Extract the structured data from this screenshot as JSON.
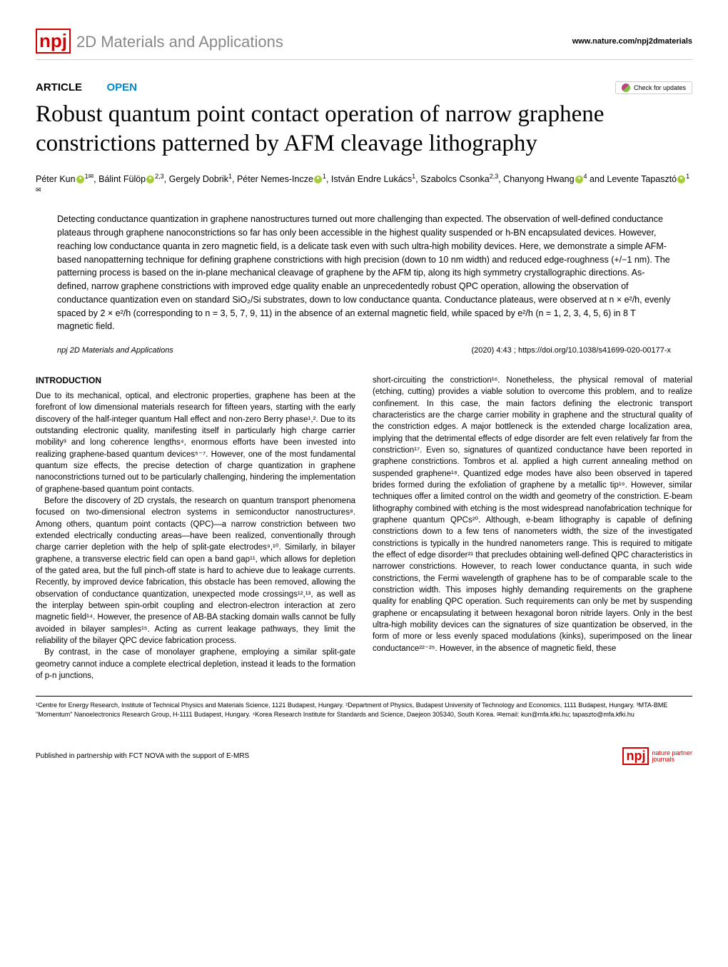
{
  "header": {
    "logo_text": "npj",
    "journal_name": "2D Materials and Applications",
    "website": "www.nature.com/npj2dmaterials"
  },
  "article_meta": {
    "type": "ARTICLE",
    "open_label": "OPEN",
    "check_updates": "Check for updates"
  },
  "title": "Robust quantum point contact operation of narrow graphene constrictions patterned by AFM cleavage lithography",
  "authors": {
    "a1_name": "Péter Kun",
    "a1_aff": "1",
    "a2_name": "Bálint Fülöp",
    "a2_aff": "2,3",
    "a3_name": "Gergely Dobrik",
    "a3_aff": "1",
    "a4_name": "Péter Nemes-Incze",
    "a4_aff": "1",
    "a5_name": "István Endre Lukács",
    "a5_aff": "1",
    "a6_name": "Szabolcs Csonka",
    "a6_aff": "2,3",
    "a7_name": "Chanyong Hwang",
    "a7_aff": "4",
    "a8_name": "Levente Tapasztó",
    "a8_aff": "1"
  },
  "abstract": "Detecting conductance quantization in graphene nanostructures turned out more challenging than expected. The observation of well-defined conductance plateaus through graphene nanoconstrictions so far has only been accessible in the highest quality suspended or h-BN encapsulated devices. However, reaching low conductance quanta in zero magnetic field, is a delicate task even with such ultra-high mobility devices. Here, we demonstrate a simple AFM-based nanopatterning technique for defining graphene constrictions with high precision (down to 10 nm width) and reduced edge-roughness (+/−1 nm). The patterning process is based on the in-plane mechanical cleavage of graphene by the AFM tip, along its high symmetry crystallographic directions. As-defined, narrow graphene constrictions with improved edge quality enable an unprecedentedly robust QPC operation, allowing the observation of conductance quantization even on standard SiO₂/Si substrates, down to low conductance quanta. Conductance plateaus, were observed at n × e²/h, evenly spaced by 2 × e²/h (corresponding to n = 3, 5, 7, 9, 11) in the absence of an external magnetic field, while spaced by e²/h (n = 1, 2, 3, 4, 5, 6) in 8 T magnetic field.",
  "citation": {
    "journal": "npj 2D Materials and Applications",
    "info": "(2020) 4:43 ; https://doi.org/10.1038/s41699-020-00177-x"
  },
  "body": {
    "intro_heading": "INTRODUCTION",
    "col1_p1": "Due to its mechanical, optical, and electronic properties, graphene has been at the forefront of low dimensional materials research for fifteen years, starting with the early discovery of the half-integer quantum Hall effect and non-zero Berry phase¹,². Due to its outstanding electronic quality, manifesting itself in particularly high charge carrier mobility³ and long coherence lengths⁴, enormous efforts have been invested into realizing graphene-based quantum devices⁵⁻⁷. However, one of the most fundamental quantum size effects, the precise detection of charge quantization in graphene nanoconstrictions turned out to be particularly challenging, hindering the implementation of graphene-based quantum point contacts.",
    "col1_p2": "Before the discovery of 2D crystals, the research on quantum transport phenomena focused on two-dimensional electron systems in semiconductor nanostructures⁸. Among others, quantum point contacts (QPC)—a narrow constriction between two extended electrically conducting areas—have been realized, conventionally through charge carrier depletion with the help of split-gate electrodes⁹,¹⁰. Similarly, in bilayer graphene, a transverse electric field can open a band gap¹¹, which allows for depletion of the gated area, but the full pinch-off state is hard to achieve due to leakage currents. Recently, by improved device fabrication, this obstacle has been removed, allowing the observation of conductance quantization, unexpected mode crossings¹²,¹³, as well as the interplay between spin-orbit coupling and electron-electron interaction at zero magnetic field¹⁴. However, the presence of AB-BA stacking domain walls cannot be fully avoided in bilayer samples¹⁵. Acting as current leakage pathways, they limit the reliability of the bilayer QPC device fabrication process.",
    "col1_p3": "By contrast, in the case of monolayer graphene, employing a similar split-gate geometry cannot induce a complete electrical depletion, instead it leads to the formation of p-n junctions,",
    "col2_p1": "short-circuiting the constriction¹⁶. Nonetheless, the physical removal of material (etching, cutting) provides a viable solution to overcome this problem, and to realize confinement. In this case, the main factors defining the electronic transport characteristics are the charge carrier mobility in graphene and the structural quality of the constriction edges. A major bottleneck is the extended charge localization area, implying that the detrimental effects of edge disorder are felt even relatively far from the constriction¹⁷. Even so, signatures of quantized conductance have been reported in graphene constrictions. Tombros et al. applied a high current annealing method on suspended graphene¹⁸. Quantized edge modes have also been observed in tapered brides formed during the exfoliation of graphene by a metallic tip¹⁹. However, similar techniques offer a limited control on the width and geometry of the constriction. E-beam lithography combined with etching is the most widespread nanofabrication technique for graphene quantum QPCs²⁰. Although, e-beam lithography is capable of defining constrictions down to a few tens of nanometers width, the size of the investigated constrictions is typically in the hundred nanometers range. This is required to mitigate the effect of edge disorder²¹ that precludes obtaining well-defined QPC characteristics in narrower constrictions. However, to reach lower conductance quanta, in such wide constrictions, the Fermi wavelength of graphene has to be of comparable scale to the constriction width. This imposes highly demanding requirements on the graphene quality for enabling QPC operation. Such requirements can only be met by suspending graphene or encapsulating it between hexagonal boron nitride layers. Only in the best ultra-high mobility devices can the signatures of size quantization be observed, in the form of more or less evenly spaced modulations (kinks), superimposed on the linear conductance²²⁻²⁵. However, in the absence of magnetic field, these"
  },
  "affiliations": "¹Centre for Energy Research, Institute of Technical Physics and Materials Science, 1121 Budapest, Hungary. ²Department of Physics, Budapest University of Technology and Economics, 1111 Budapest, Hungary. ³MTA-BME \"Momentum\" Nanoelectronics Research Group, H-1111 Budapest, Hungary. ⁴Korea Research Institute for Standards and Science, Daejeon 305340, South Korea. ✉email: kun@mfa.kfki.hu; tapaszto@mfa.kfki.hu",
  "footer": {
    "left": "Published in partnership with FCT NOVA with the support of E-MRS",
    "logo": "npj",
    "right_top": "nature partner",
    "right_bottom": "journals"
  },
  "colors": {
    "brand_red": "#d40000",
    "link_blue": "#0066aa",
    "open_blue": "#0088cc",
    "light_gray": "#888888",
    "orcid_green": "#a6ce39"
  }
}
